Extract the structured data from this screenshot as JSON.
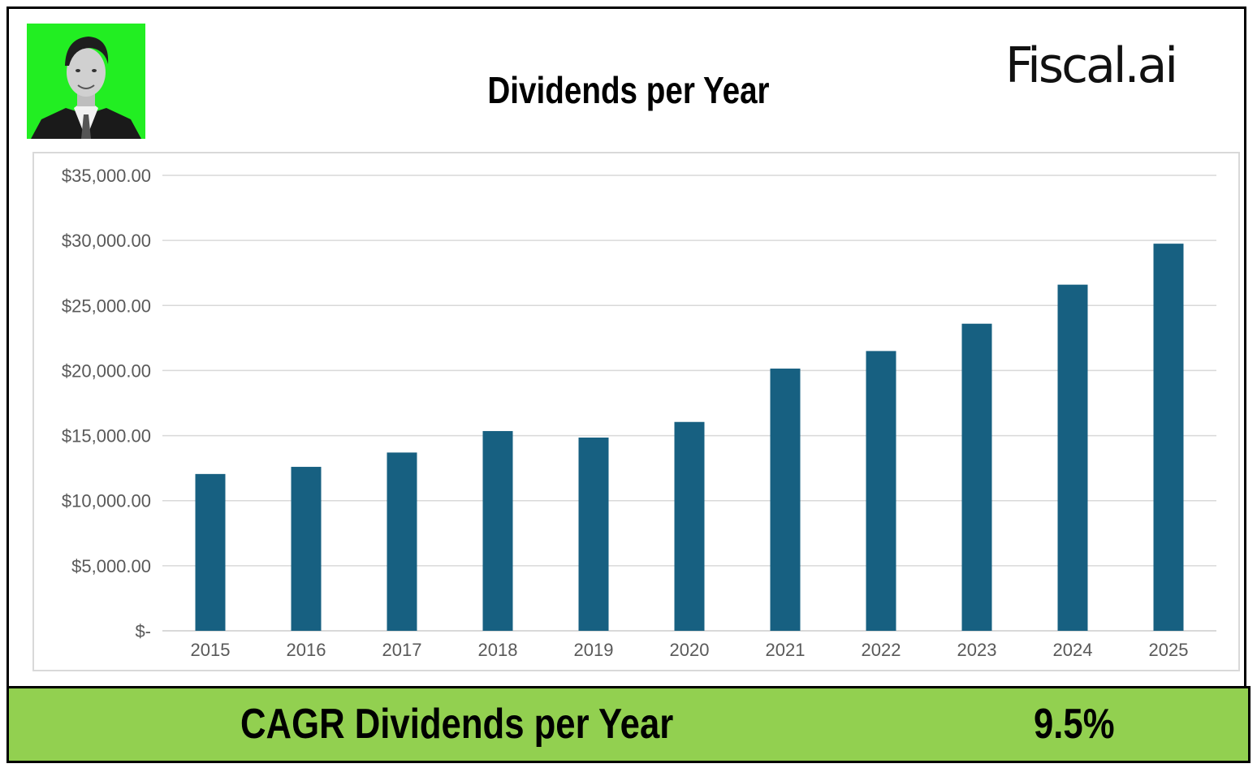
{
  "header": {
    "title": "Dividends per Year",
    "brand": "Fiscal.ai"
  },
  "colors": {
    "bar": "#176081",
    "avatar_bg": "#22ee22",
    "cagr_bg": "#92d050",
    "grid": "#d9d9d9"
  },
  "chart_data": {
    "type": "bar",
    "title": "Dividends per Year",
    "xlabel": "",
    "ylabel": "",
    "categories": [
      "2015",
      "2016",
      "2017",
      "2018",
      "2019",
      "2020",
      "2021",
      "2022",
      "2023",
      "2024",
      "2025"
    ],
    "values": [
      12050,
      12600,
      13700,
      15350,
      14850,
      16050,
      20150,
      21500,
      23600,
      26600,
      29750
    ],
    "ylim": [
      0,
      35000
    ],
    "yticks": [
      0,
      5000,
      10000,
      15000,
      20000,
      25000,
      30000,
      35000
    ],
    "ytick_labels": [
      "$-",
      "$5,000.00",
      "$10,000.00",
      "$15,000.00",
      "$20,000.00",
      "$25,000.00",
      "$30,000.00",
      "$35,000.00"
    ],
    "grid": true,
    "legend": "none"
  },
  "summary": {
    "cagr_label": "CAGR Dividends per Year",
    "cagr_value": "9.5%"
  }
}
